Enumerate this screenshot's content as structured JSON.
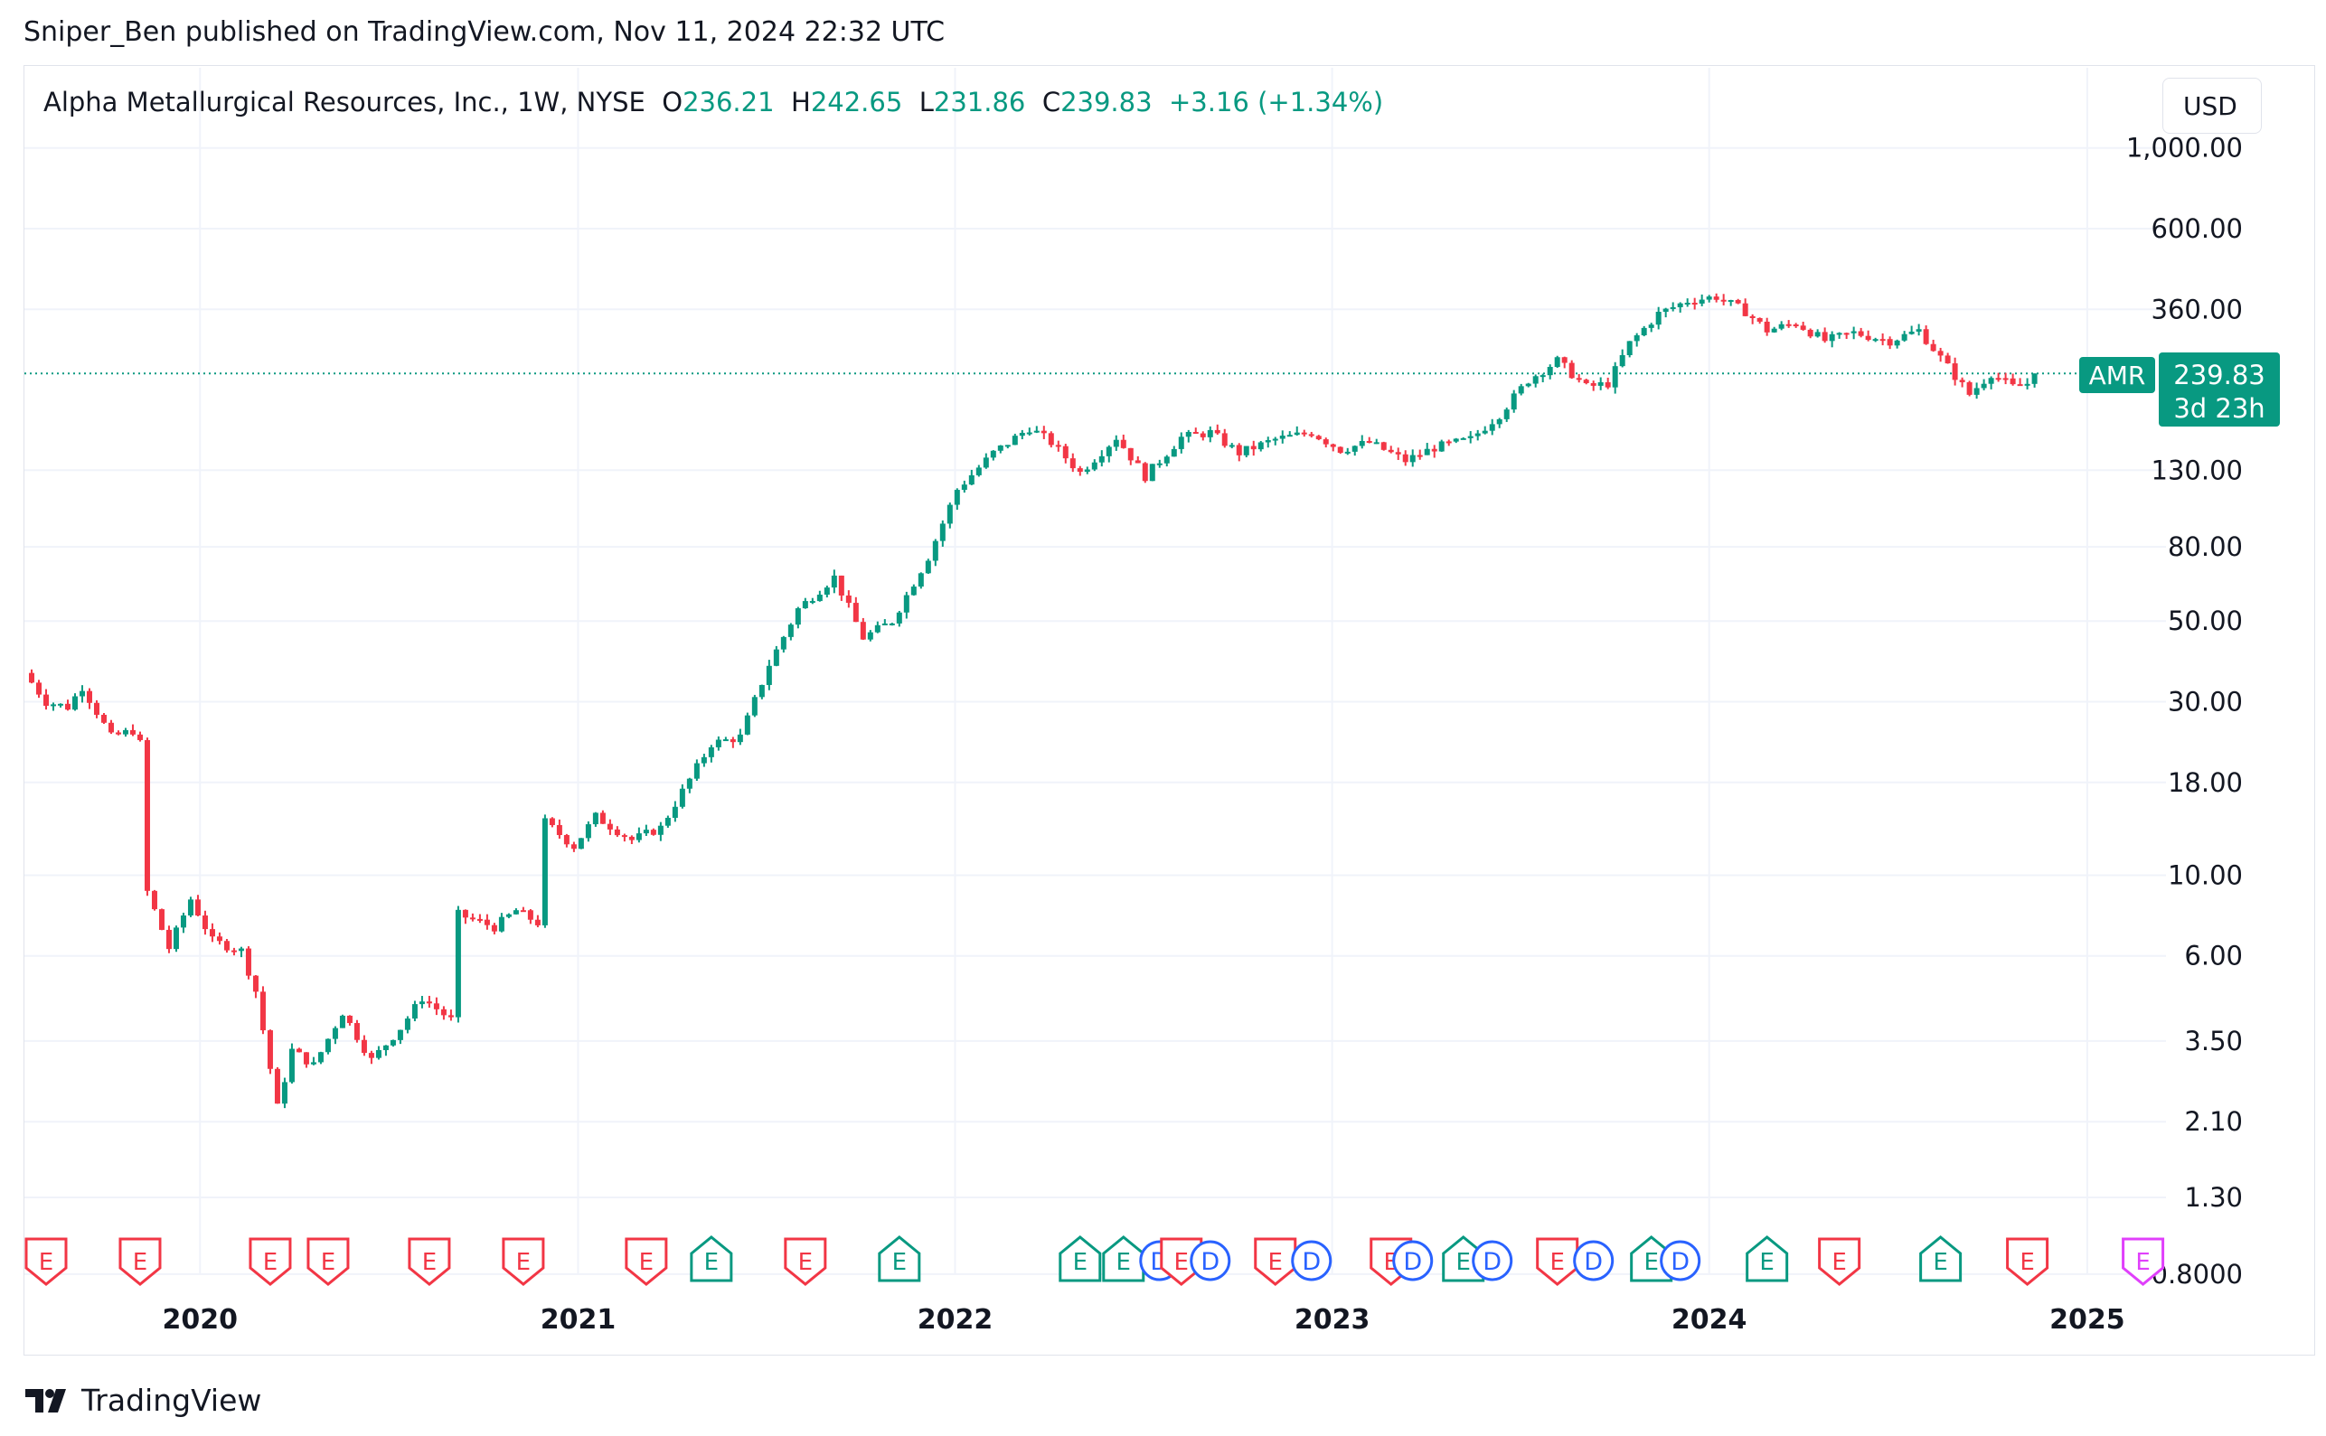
{
  "header": {
    "publish_line": "Sniper_Ben published on TradingView.com, Nov 11, 2024 22:32 UTC"
  },
  "legend": {
    "symbol": "Alpha Metallurgical Resources, Inc., 1W, NYSE",
    "open_label": "O",
    "open": "236.21",
    "high_label": "H",
    "high": "242.65",
    "low_label": "L",
    "low": "231.86",
    "close_label": "C",
    "close": "239.83",
    "change": "+3.16 (+1.34%)"
  },
  "currency_button": "USD",
  "price_tag": {
    "ticker": "AMR",
    "price": "239.83",
    "countdown": "3d 23h"
  },
  "footer": {
    "brand": "TradingView"
  },
  "colors": {
    "up": "#089981",
    "down": "#f23645",
    "dividend": "#2962ff",
    "split": "#e040fb",
    "grid": "#f0f3fa",
    "axis_text": "#131722"
  },
  "chart_data": {
    "type": "candlestick",
    "title": "Alpha Metallurgical Resources, Inc., 1W, NYSE",
    "y_scale": "log",
    "ylim": [
      0.8,
      1000
    ],
    "y_ticks": [
      "1,000.00",
      "600.00",
      "360.00",
      "130.00",
      "80.00",
      "50.00",
      "30.00",
      "18.00",
      "10.00",
      "6.00",
      "3.50",
      "2.10",
      "1.30",
      "0.8000"
    ],
    "x_ticks": [
      "2020",
      "2021",
      "2022",
      "2023",
      "2024",
      "2025"
    ],
    "x_range": [
      "2019-07-15",
      "2025-03-20"
    ],
    "last_price": 239.83,
    "price_path": [
      {
        "date": "2019-07-15",
        "price": 36
      },
      {
        "date": "2019-08-05",
        "price": 30
      },
      {
        "date": "2019-08-26",
        "price": 29
      },
      {
        "date": "2019-09-09",
        "price": 33
      },
      {
        "date": "2019-10-07",
        "price": 24
      },
      {
        "date": "2019-10-28",
        "price": 25
      },
      {
        "date": "2019-11-04",
        "price": 23
      },
      {
        "date": "2019-11-11",
        "price": 9
      },
      {
        "date": "2019-12-02",
        "price": 6.3
      },
      {
        "date": "2019-12-23",
        "price": 8.6
      },
      {
        "date": "2020-01-13",
        "price": 6.6
      },
      {
        "date": "2020-02-10",
        "price": 6.2
      },
      {
        "date": "2020-02-24",
        "price": 4.8
      },
      {
        "date": "2020-03-16",
        "price": 2.3
      },
      {
        "date": "2020-03-30",
        "price": 3.3
      },
      {
        "date": "2020-04-20",
        "price": 3.0
      },
      {
        "date": "2020-05-18",
        "price": 4.2
      },
      {
        "date": "2020-06-15",
        "price": 3.1
      },
      {
        "date": "2020-07-13",
        "price": 3.8
      },
      {
        "date": "2020-08-03",
        "price": 4.6
      },
      {
        "date": "2020-08-31",
        "price": 4.0
      },
      {
        "date": "2020-09-07",
        "price": 7.8
      },
      {
        "date": "2020-10-12",
        "price": 7.2
      },
      {
        "date": "2020-11-02",
        "price": 8.0
      },
      {
        "date": "2020-11-23",
        "price": 7.4
      },
      {
        "date": "2020-11-30",
        "price": 14.0
      },
      {
        "date": "2020-12-28",
        "price": 12.0
      },
      {
        "date": "2021-01-18",
        "price": 14.5
      },
      {
        "date": "2021-02-22",
        "price": 12.5
      },
      {
        "date": "2021-03-22",
        "price": 13.5
      },
      {
        "date": "2021-04-12",
        "price": 17.0
      },
      {
        "date": "2021-05-10",
        "price": 23.0
      },
      {
        "date": "2021-06-07",
        "price": 24.0
      },
      {
        "date": "2021-07-05",
        "price": 38.0
      },
      {
        "date": "2021-08-02",
        "price": 54.0
      },
      {
        "date": "2021-09-06",
        "price": 66.0
      },
      {
        "date": "2021-10-04",
        "price": 45.0
      },
      {
        "date": "2021-11-01",
        "price": 50.0
      },
      {
        "date": "2021-12-06",
        "price": 75.0
      },
      {
        "date": "2022-01-03",
        "price": 115.0
      },
      {
        "date": "2022-02-07",
        "price": 145.0
      },
      {
        "date": "2022-03-14",
        "price": 170.0
      },
      {
        "date": "2022-04-04",
        "price": 155.0
      },
      {
        "date": "2022-05-02",
        "price": 128.0
      },
      {
        "date": "2022-06-06",
        "price": 160.0
      },
      {
        "date": "2022-07-04",
        "price": 125.0
      },
      {
        "date": "2022-08-08",
        "price": 160.0
      },
      {
        "date": "2022-09-05",
        "price": 165.0
      },
      {
        "date": "2022-10-03",
        "price": 145.0
      },
      {
        "date": "2022-11-07",
        "price": 158.0
      },
      {
        "date": "2022-12-12",
        "price": 165.0
      },
      {
        "date": "2023-01-09",
        "price": 148.0
      },
      {
        "date": "2023-02-06",
        "price": 155.0
      },
      {
        "date": "2023-03-13",
        "price": 138.0
      },
      {
        "date": "2023-04-10",
        "price": 150.0
      },
      {
        "date": "2023-05-15",
        "price": 158.0
      },
      {
        "date": "2023-06-12",
        "price": 185.0
      },
      {
        "date": "2023-07-10",
        "price": 230.0
      },
      {
        "date": "2023-08-07",
        "price": 260.0
      },
      {
        "date": "2023-09-04",
        "price": 220.0
      },
      {
        "date": "2023-09-25",
        "price": 225.0
      },
      {
        "date": "2023-10-16",
        "price": 290.0
      },
      {
        "date": "2023-11-13",
        "price": 350.0
      },
      {
        "date": "2023-12-11",
        "price": 380.0
      },
      {
        "date": "2024-01-08",
        "price": 390.0
      },
      {
        "date": "2024-02-05",
        "price": 355.0
      },
      {
        "date": "2024-02-26",
        "price": 315.0
      },
      {
        "date": "2024-03-25",
        "price": 330.0
      },
      {
        "date": "2024-04-22",
        "price": 295.0
      },
      {
        "date": "2024-05-20",
        "price": 310.0
      },
      {
        "date": "2024-06-24",
        "price": 295.0
      },
      {
        "date": "2024-07-22",
        "price": 315.0
      },
      {
        "date": "2024-08-19",
        "price": 250.0
      },
      {
        "date": "2024-09-09",
        "price": 210.0
      },
      {
        "date": "2024-09-30",
        "price": 240.0
      },
      {
        "date": "2024-10-21",
        "price": 220.0
      },
      {
        "date": "2024-11-04",
        "price": 225.0
      },
      {
        "date": "2024-11-11",
        "price": 239.83
      }
    ],
    "event_markers": [
      {
        "date": "2019-08-05",
        "kind": "E",
        "result": "negative"
      },
      {
        "date": "2019-11-04",
        "kind": "E",
        "result": "negative"
      },
      {
        "date": "2020-03-09",
        "kind": "E",
        "result": "negative"
      },
      {
        "date": "2020-05-04",
        "kind": "E",
        "result": "negative"
      },
      {
        "date": "2020-08-10",
        "kind": "E",
        "result": "negative"
      },
      {
        "date": "2020-11-09",
        "kind": "E",
        "result": "negative"
      },
      {
        "date": "2021-03-08",
        "kind": "E",
        "result": "negative"
      },
      {
        "date": "2021-05-10",
        "kind": "E",
        "result": "positive"
      },
      {
        "date": "2021-08-09",
        "kind": "E",
        "result": "negative"
      },
      {
        "date": "2021-11-08",
        "kind": "E",
        "result": "positive"
      },
      {
        "date": "2022-05-02",
        "kind": "E",
        "result": "positive"
      },
      {
        "date": "2022-06-13",
        "kind": "E",
        "result": "positive"
      },
      {
        "date": "2022-07-18",
        "kind": "D"
      },
      {
        "date": "2022-08-08",
        "kind": "E",
        "result": "negative"
      },
      {
        "date": "2022-09-05",
        "kind": "D"
      },
      {
        "date": "2022-11-07",
        "kind": "E",
        "result": "negative"
      },
      {
        "date": "2022-12-12",
        "kind": "D"
      },
      {
        "date": "2023-02-27",
        "kind": "E",
        "result": "negative"
      },
      {
        "date": "2023-03-20",
        "kind": "D"
      },
      {
        "date": "2023-05-08",
        "kind": "E",
        "result": "positive"
      },
      {
        "date": "2023-06-05",
        "kind": "D"
      },
      {
        "date": "2023-08-07",
        "kind": "E",
        "result": "negative"
      },
      {
        "date": "2023-09-11",
        "kind": "D"
      },
      {
        "date": "2023-11-06",
        "kind": "E",
        "result": "positive"
      },
      {
        "date": "2023-12-04",
        "kind": "D"
      },
      {
        "date": "2024-02-26",
        "kind": "E",
        "result": "positive"
      },
      {
        "date": "2024-05-06",
        "kind": "E",
        "result": "negative"
      },
      {
        "date": "2024-08-12",
        "kind": "E",
        "result": "positive"
      },
      {
        "date": "2024-11-04",
        "kind": "E",
        "result": "negative"
      },
      {
        "date": "2025-02-24",
        "kind": "E",
        "result": "upcoming"
      }
    ]
  }
}
